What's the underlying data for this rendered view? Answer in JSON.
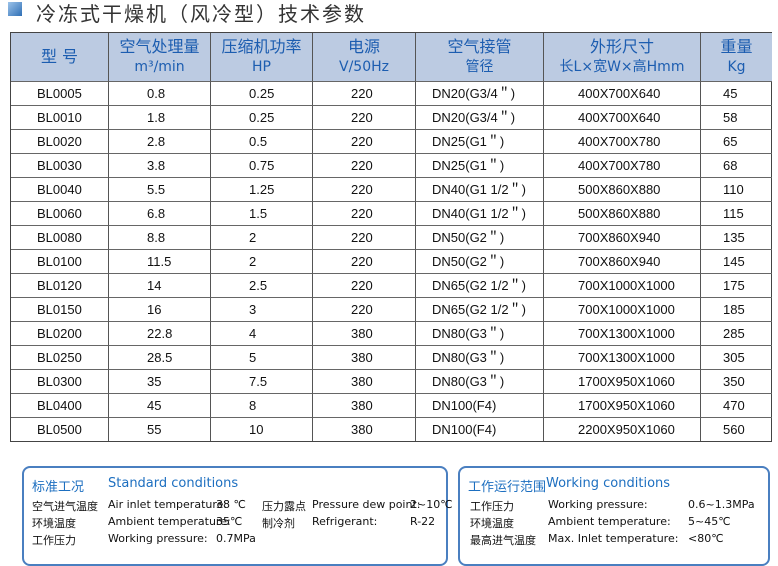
{
  "title": "冷冻式干燥机（风冷型）技术参数",
  "table": {
    "header": [
      [
        "型 号"
      ],
      [
        "空气处理量",
        "m³/min"
      ],
      [
        "压缩机功率",
        "HP"
      ],
      [
        "电源",
        "V/50Hz"
      ],
      [
        "空气接管",
        "管径"
      ],
      [
        "外形尺寸",
        "长L×宽W×高Hmm"
      ],
      [
        "重量",
        "Kg"
      ]
    ],
    "rows": [
      [
        "BL0005",
        "0.8",
        "0.25",
        "220",
        "DN20(G3/4＂)",
        "400X700X640",
        "45"
      ],
      [
        "BL0010",
        "1.8",
        "0.25",
        "220",
        "DN20(G3/4＂)",
        "400X700X640",
        "58"
      ],
      [
        "BL0020",
        "2.8",
        "0.5",
        "220",
        "DN25(G1＂)",
        "400X700X780",
        "65"
      ],
      [
        "BL0030",
        "3.8",
        "0.75",
        "220",
        "DN25(G1＂)",
        "400X700X780",
        "68"
      ],
      [
        "BL0040",
        "5.5",
        "1.25",
        "220",
        "DN40(G1 1/2＂)",
        "500X860X880",
        "110"
      ],
      [
        "BL0060",
        "6.8",
        "1.5",
        "220",
        "DN40(G1 1/2＂)",
        "500X860X880",
        "115"
      ],
      [
        "BL0080",
        "8.8",
        "2",
        "220",
        "DN50(G2＂)",
        "700X860X940",
        "135"
      ],
      [
        "BL0100",
        "11.5",
        "2",
        "220",
        "DN50(G2＂)",
        "700X860X940",
        "145"
      ],
      [
        "BL0120",
        "14",
        "2.5",
        "220",
        "DN65(G2 1/2＂)",
        "700X1000X1000",
        "175"
      ],
      [
        "BL0150",
        "16",
        "3",
        "220",
        "DN65(G2 1/2＂)",
        "700X1000X1000",
        "185"
      ],
      [
        "BL0200",
        "22.8",
        "4",
        "380",
        "DN80(G3＂)",
        "700X1300X1000",
        "285"
      ],
      [
        "BL0250",
        "28.5",
        "5",
        "380",
        "DN80(G3＂)",
        "700X1300X1000",
        "305"
      ],
      [
        "BL0300",
        "35",
        "7.5",
        "380",
        "DN80(G3＂)",
        "1700X950X1060",
        "350"
      ],
      [
        "BL0400",
        "45",
        "8",
        "380",
        "DN100(F4)",
        "1700X950X1060",
        "470"
      ],
      [
        "BL0500",
        "55",
        "10",
        "380",
        "DN100(F4)",
        "2200X950X1060",
        "560"
      ]
    ]
  },
  "standard": {
    "title_cn": "标准工况",
    "title_en": "Standard conditions",
    "rows": [
      [
        "空气进气温度",
        "Air inlet temperature:",
        "38 ℃",
        "压力露点",
        "Pressure dew point:",
        "2~10℃"
      ],
      [
        "环境温度",
        "Ambient temperature:",
        "35℃",
        "制冷剂",
        "Refrigerant:",
        "R-22"
      ],
      [
        "工作压力",
        "Working pressure:",
        "0.7MPa"
      ]
    ]
  },
  "working": {
    "title_cn": "工作运行范围",
    "title_en": "Working conditions",
    "rows": [
      [
        "工作压力",
        "Working pressure:",
        "0.6~1.3MPa"
      ],
      [
        "环境温度",
        "Ambient temperature:",
        "5~45℃"
      ],
      [
        "最高进气温度",
        "Max. Inlet temperature:",
        "<80℃"
      ]
    ]
  }
}
